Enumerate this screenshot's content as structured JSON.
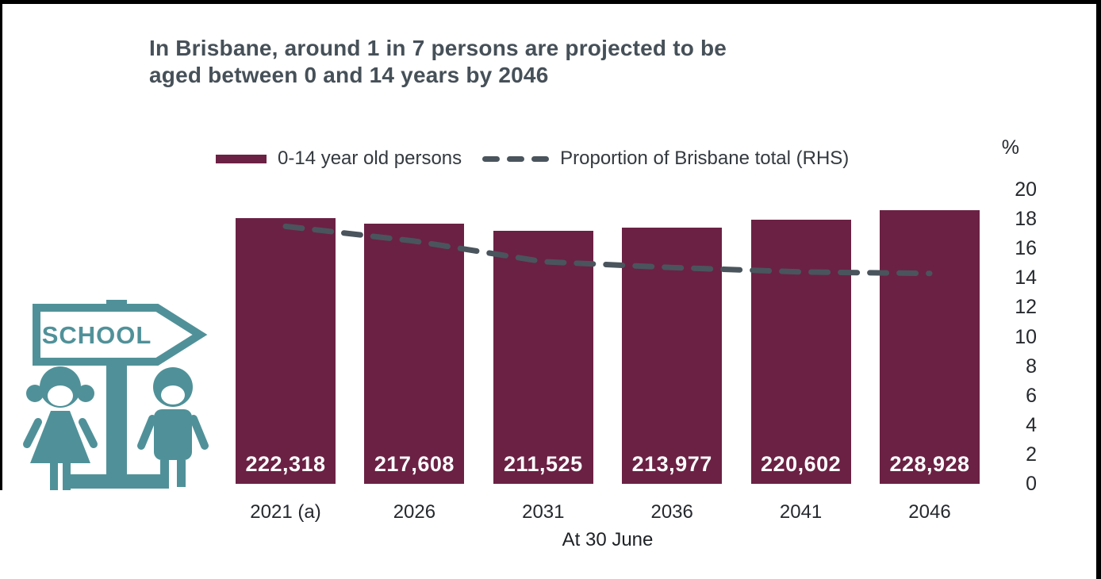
{
  "page": {
    "background": "#ffffff",
    "frame_color": "#000000"
  },
  "title": {
    "lines": [
      "In Brisbane, around 1 in 7 persons are projected to be",
      "aged between 0 and 14 years by 2046"
    ],
    "color": "#465058"
  },
  "legend": {
    "bar_label": "0-14 year old persons",
    "line_label": "Proportion of Brisbane total (RHS)"
  },
  "icon": {
    "description": "school-direction-sign-with-girl-and-boy",
    "sign_text": "SCHOOL",
    "color": "#509199"
  },
  "colors": {
    "bar": "#6B2144",
    "dashed_line": "#4A545C",
    "bar_value_text": "#FFFFFF",
    "axis_text": "#25292D",
    "title_text": "#465058"
  },
  "chart_data": {
    "type": "bar",
    "title": "In Brisbane, around 1 in 7 persons are projected to be aged between 0 and 14 years by 2046",
    "categories": [
      "2021 (a)",
      "2026",
      "2031",
      "2036",
      "2041",
      "2046"
    ],
    "series": [
      {
        "name": "0-14 year old persons",
        "type": "bar",
        "axis": "left-hidden",
        "values": [
          222318,
          217608,
          211525,
          213977,
          220602,
          228928
        ],
        "value_labels": [
          "222,318",
          "217,608",
          "211,525",
          "213,977",
          "220,602",
          "228,928"
        ],
        "color": "#6B2144"
      },
      {
        "name": "Proportion of Brisbane total (RHS)",
        "type": "line",
        "line_style": "dashed",
        "axis": "right",
        "values": [
          17.5,
          16.5,
          15.1,
          14.7,
          14.4,
          14.3
        ],
        "color": "#4A545C"
      }
    ],
    "xlabel": "At 30 June",
    "right_axis": {
      "label": "%",
      "min": 0,
      "max": 20,
      "tick_step": 2,
      "ticks": [
        20,
        18,
        16,
        14,
        12,
        10,
        8,
        6,
        4,
        2,
        0
      ]
    },
    "legend_position": "top",
    "grid": false
  }
}
